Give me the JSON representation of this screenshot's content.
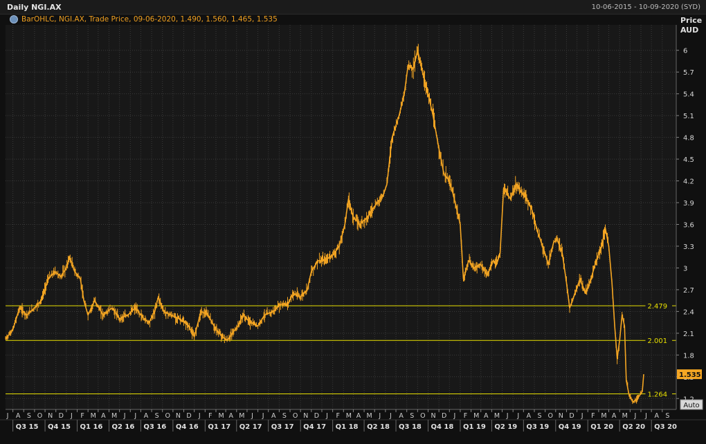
{
  "window": {
    "title": "Daily NGI.AX",
    "date_range": "10-06-2015 - 10-09-2020 (SYD)"
  },
  "legend": {
    "text": "BarOHLC, NGI.AX, Trade Price, 09-06-2020, 1.490, 1.560, 1.465, 1.535",
    "icon": "settings-icon"
  },
  "axis": {
    "y_title_1": "Price",
    "y_title_2": "AUD",
    "auto_label": "Auto"
  },
  "colors": {
    "background": "#101010",
    "grid": "#3a3a3a",
    "series": "#f5a623",
    "hline": "#e8e000",
    "last_price_bg": "#f5a623"
  },
  "chart_data": {
    "type": "line",
    "title": "Daily NGI.AX",
    "ylabel": "Price AUD",
    "ylim": [
      1.05,
      6.35
    ],
    "ytick_labels": [
      "1.2",
      "1.5",
      "1.8",
      "2.1",
      "2.4",
      "2.7",
      "3",
      "3.3",
      "3.6",
      "3.9",
      "4.2",
      "4.5",
      "4.8",
      "5.1",
      "5.4",
      "5.7",
      "6"
    ],
    "xlim": [
      "2015-06-10",
      "2020-09-10"
    ],
    "month_labels": [
      "J",
      "A",
      "S",
      "O",
      "N",
      "D",
      "J",
      "F",
      "M",
      "A",
      "M",
      "J",
      "J",
      "A",
      "S",
      "O",
      "N",
      "D",
      "J",
      "F",
      "M",
      "A",
      "M",
      "J",
      "J",
      "A",
      "S",
      "O",
      "N",
      "D",
      "J",
      "F",
      "M",
      "A",
      "M",
      "J",
      "J",
      "A",
      "S",
      "O",
      "N",
      "D",
      "J",
      "F",
      "M",
      "A",
      "M",
      "J",
      "J",
      "A",
      "S",
      "O",
      "N",
      "D",
      "J",
      "F",
      "M",
      "A",
      "M",
      "J",
      "J",
      "A",
      "S"
    ],
    "quarter_labels": [
      "Q3 15",
      "Q4 15",
      "Q1 16",
      "Q2 16",
      "Q3 16",
      "Q4 16",
      "Q1 17",
      "Q2 17",
      "Q3 17",
      "Q4 17",
      "Q1 18",
      "Q2 18",
      "Q3 18",
      "Q4 18",
      "Q1 19",
      "Q2 19",
      "Q3 19",
      "Q4 19",
      "Q1 20",
      "Q2 20",
      "Q3 20"
    ],
    "series": [
      {
        "values": [
          [
            "2015-06-10",
            2.02
          ],
          [
            "2015-07-01",
            2.15
          ],
          [
            "2015-07-20",
            2.45
          ],
          [
            "2015-08-10",
            2.35
          ],
          [
            "2015-09-01",
            2.45
          ],
          [
            "2015-09-20",
            2.55
          ],
          [
            "2015-10-10",
            2.85
          ],
          [
            "2015-10-30",
            2.95
          ],
          [
            "2015-11-15",
            2.88
          ],
          [
            "2015-12-01",
            3.0
          ],
          [
            "2015-12-10",
            3.15
          ],
          [
            "2015-12-25",
            2.95
          ],
          [
            "2016-01-10",
            2.85
          ],
          [
            "2016-01-20",
            2.55
          ],
          [
            "2016-02-01",
            2.35
          ],
          [
            "2016-02-20",
            2.55
          ],
          [
            "2016-03-15",
            2.35
          ],
          [
            "2016-04-10",
            2.45
          ],
          [
            "2016-05-01",
            2.3
          ],
          [
            "2016-05-25",
            2.35
          ],
          [
            "2016-06-15",
            2.45
          ],
          [
            "2016-07-10",
            2.3
          ],
          [
            "2016-07-25",
            2.25
          ],
          [
            "2016-08-10",
            2.4
          ],
          [
            "2016-08-20",
            2.6
          ],
          [
            "2016-09-05",
            2.4
          ],
          [
            "2016-09-25",
            2.35
          ],
          [
            "2016-10-20",
            2.3
          ],
          [
            "2016-11-15",
            2.2
          ],
          [
            "2016-12-01",
            2.05
          ],
          [
            "2016-12-20",
            2.4
          ],
          [
            "2017-01-10",
            2.35
          ],
          [
            "2017-02-01",
            2.15
          ],
          [
            "2017-02-20",
            2.05
          ],
          [
            "2017-03-05",
            2.0
          ],
          [
            "2017-03-20",
            2.1
          ],
          [
            "2017-04-05",
            2.2
          ],
          [
            "2017-04-20",
            2.35
          ],
          [
            "2017-05-10",
            2.25
          ],
          [
            "2017-06-01",
            2.2
          ],
          [
            "2017-06-20",
            2.35
          ],
          [
            "2017-07-15",
            2.4
          ],
          [
            "2017-08-05",
            2.5
          ],
          [
            "2017-08-25",
            2.5
          ],
          [
            "2017-09-10",
            2.65
          ],
          [
            "2017-10-01",
            2.6
          ],
          [
            "2017-10-20",
            2.7
          ],
          [
            "2017-11-01",
            2.95
          ],
          [
            "2017-11-20",
            3.1
          ],
          [
            "2017-12-10",
            3.1
          ],
          [
            "2018-01-05",
            3.2
          ],
          [
            "2018-01-20",
            3.3
          ],
          [
            "2018-02-05",
            3.6
          ],
          [
            "2018-02-15",
            3.95
          ],
          [
            "2018-03-01",
            3.7
          ],
          [
            "2018-03-20",
            3.6
          ],
          [
            "2018-04-10",
            3.7
          ],
          [
            "2018-05-01",
            3.85
          ],
          [
            "2018-05-25",
            4.0
          ],
          [
            "2018-06-05",
            4.15
          ],
          [
            "2018-06-20",
            4.8
          ],
          [
            "2018-07-10",
            5.1
          ],
          [
            "2018-07-25",
            5.4
          ],
          [
            "2018-08-05",
            5.8
          ],
          [
            "2018-08-20",
            5.75
          ],
          [
            "2018-09-01",
            6.0
          ],
          [
            "2018-09-15",
            5.7
          ],
          [
            "2018-10-01",
            5.4
          ],
          [
            "2018-10-15",
            5.1
          ],
          [
            "2018-10-30",
            4.7
          ],
          [
            "2018-11-15",
            4.3
          ],
          [
            "2018-12-01",
            4.2
          ],
          [
            "2018-12-10",
            4.05
          ],
          [
            "2018-12-20",
            3.85
          ],
          [
            "2019-01-01",
            3.6
          ],
          [
            "2019-01-10",
            2.85
          ],
          [
            "2019-01-25",
            3.1
          ],
          [
            "2019-02-10",
            3.0
          ],
          [
            "2019-02-28",
            3.05
          ],
          [
            "2019-03-20",
            2.9
          ],
          [
            "2019-04-05",
            3.1
          ],
          [
            "2019-04-15",
            3.05
          ],
          [
            "2019-04-25",
            3.2
          ],
          [
            "2019-05-05",
            4.1
          ],
          [
            "2019-05-25",
            3.95
          ],
          [
            "2019-06-10",
            4.15
          ],
          [
            "2019-06-25",
            4.05
          ],
          [
            "2019-07-10",
            3.95
          ],
          [
            "2019-07-25",
            3.8
          ],
          [
            "2019-08-10",
            3.5
          ],
          [
            "2019-08-25",
            3.3
          ],
          [
            "2019-09-10",
            3.05
          ],
          [
            "2019-09-25",
            3.35
          ],
          [
            "2019-10-05",
            3.4
          ],
          [
            "2019-10-20",
            3.2
          ],
          [
            "2019-11-01",
            2.8
          ],
          [
            "2019-11-10",
            2.45
          ],
          [
            "2019-11-25",
            2.65
          ],
          [
            "2019-12-10",
            2.85
          ],
          [
            "2019-12-25",
            2.65
          ],
          [
            "2020-01-10",
            2.85
          ],
          [
            "2020-01-25",
            3.1
          ],
          [
            "2020-02-10",
            3.3
          ],
          [
            "2020-02-20",
            3.55
          ],
          [
            "2020-03-01",
            3.3
          ],
          [
            "2020-03-10",
            2.8
          ],
          [
            "2020-03-18",
            2.2
          ],
          [
            "2020-03-25",
            1.75
          ],
          [
            "2020-04-01",
            2.0
          ],
          [
            "2020-04-08",
            2.35
          ],
          [
            "2020-04-15",
            2.2
          ],
          [
            "2020-04-20",
            1.45
          ],
          [
            "2020-04-28",
            1.25
          ],
          [
            "2020-05-10",
            1.15
          ],
          [
            "2020-05-25",
            1.22
          ],
          [
            "2020-06-05",
            1.3
          ],
          [
            "2020-06-09",
            1.535
          ]
        ]
      }
    ],
    "hlines": [
      {
        "value": 2.479,
        "label": "2.479"
      },
      {
        "value": 2.001,
        "label": "2.001"
      },
      {
        "value": 1.264,
        "label": "1.264"
      }
    ],
    "last_price": {
      "value": 1.535,
      "label": "1.535"
    },
    "grid": true
  }
}
